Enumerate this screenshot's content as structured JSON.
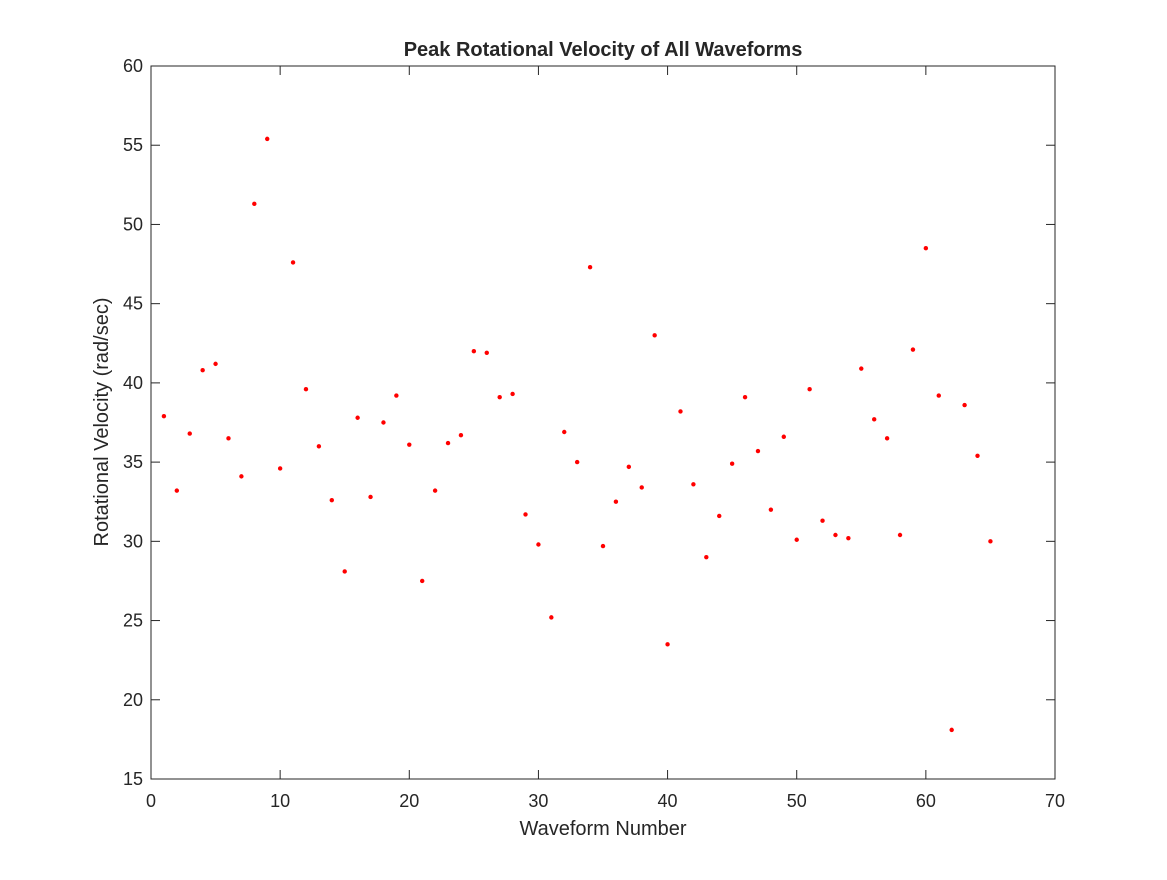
{
  "chart_data": {
    "type": "scatter",
    "title": "Peak Rotational Velocity of All Waveforms",
    "xlabel": "Waveform Number",
    "ylabel": "Rotational Velocity (rad/sec)",
    "xlim": [
      0,
      70
    ],
    "ylim": [
      15,
      60
    ],
    "xticks": [
      0,
      10,
      20,
      30,
      40,
      50,
      60,
      70
    ],
    "yticks": [
      15,
      20,
      25,
      30,
      35,
      40,
      45,
      50,
      55,
      60
    ],
    "grid": false,
    "box": true,
    "marker_color": "#ff0000",
    "x": [
      1,
      2,
      3,
      4,
      5,
      6,
      7,
      8,
      9,
      10,
      11,
      12,
      13,
      14,
      15,
      16,
      17,
      18,
      19,
      20,
      21,
      22,
      23,
      24,
      25,
      26,
      27,
      28,
      29,
      30,
      31,
      32,
      33,
      34,
      35,
      36,
      37,
      38,
      39,
      40,
      41,
      42,
      43,
      44,
      45,
      46,
      47,
      48,
      49,
      50,
      51,
      52,
      53,
      54,
      55,
      56,
      57,
      58,
      59,
      60,
      61,
      62,
      63,
      64,
      65
    ],
    "y": [
      37.9,
      33.2,
      36.8,
      40.8,
      41.2,
      36.5,
      34.1,
      51.3,
      55.4,
      34.6,
      47.6,
      39.6,
      36.0,
      32.6,
      28.1,
      37.8,
      32.8,
      37.5,
      39.2,
      36.1,
      27.5,
      33.2,
      36.2,
      36.7,
      42.0,
      41.9,
      39.1,
      39.3,
      31.7,
      29.8,
      25.2,
      36.9,
      35.0,
      47.3,
      29.7,
      32.5,
      34.7,
      33.4,
      43.0,
      23.5,
      38.2,
      33.6,
      29.0,
      31.6,
      34.9,
      39.1,
      35.7,
      32.0,
      36.6,
      30.1,
      39.6,
      31.3,
      30.4,
      30.2,
      40.9,
      37.7,
      36.5,
      30.4,
      42.1,
      48.5,
      39.2,
      18.1,
      38.6,
      35.4,
      30.0
    ]
  }
}
